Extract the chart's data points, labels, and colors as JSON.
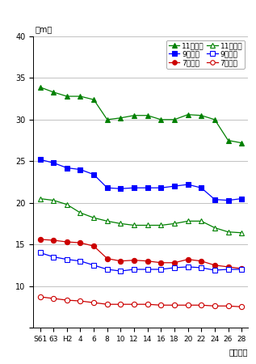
{
  "x_labels": [
    "S61",
    "63",
    "H2",
    "4",
    "6",
    "8",
    "10",
    "12",
    "14",
    "16",
    "18",
    "20",
    "22",
    "24",
    "26",
    "28"
  ],
  "x_positions": [
    0,
    1,
    2,
    3,
    4,
    5,
    6,
    7,
    8,
    9,
    10,
    11,
    12,
    13,
    14,
    15
  ],
  "series_order": [
    "11歳男子",
    "9歳男子",
    "7歳男子",
    "11歳女子",
    "9歳女子",
    "7歳女子"
  ],
  "series": {
    "11歳男子": {
      "values": [
        33.9,
        33.3,
        32.8,
        32.8,
        32.4,
        30.0,
        30.2,
        30.5,
        30.5,
        30.0,
        30.0,
        30.6,
        30.5,
        30.0,
        27.5,
        27.2
      ],
      "color": "#008000",
      "marker": "^",
      "filled": true,
      "markersize": 4.5
    },
    "9歳男子": {
      "values": [
        25.2,
        24.8,
        24.2,
        24.0,
        23.4,
        21.8,
        21.7,
        21.8,
        21.8,
        21.8,
        22.0,
        22.2,
        21.8,
        20.4,
        20.3,
        20.5
      ],
      "color": "#0000FF",
      "marker": "s",
      "filled": true,
      "markersize": 4.5
    },
    "7歳男子": {
      "values": [
        15.6,
        15.5,
        15.3,
        15.2,
        14.8,
        13.3,
        13.0,
        13.1,
        13.0,
        12.8,
        12.8,
        13.2,
        13.0,
        12.5,
        12.3,
        12.1
      ],
      "color": "#CC0000",
      "marker": "o",
      "filled": true,
      "markersize": 4.5
    },
    "11歳女子": {
      "values": [
        20.5,
        20.3,
        19.8,
        18.8,
        18.2,
        17.8,
        17.5,
        17.3,
        17.3,
        17.3,
        17.5,
        17.8,
        17.8,
        17.0,
        16.5,
        16.4
      ],
      "color": "#008000",
      "marker": "^",
      "filled": false,
      "markersize": 4.5
    },
    "9歳女子": {
      "values": [
        14.0,
        13.5,
        13.2,
        13.0,
        12.5,
        12.0,
        11.8,
        12.0,
        12.0,
        12.0,
        12.2,
        12.3,
        12.2,
        11.9,
        12.0,
        12.0
      ],
      "color": "#0000FF",
      "marker": "s",
      "filled": false,
      "markersize": 4.5
    },
    "7歳女子": {
      "values": [
        8.7,
        8.5,
        8.3,
        8.2,
        8.0,
        7.8,
        7.8,
        7.8,
        7.8,
        7.7,
        7.7,
        7.7,
        7.7,
        7.6,
        7.6,
        7.5
      ],
      "color": "#CC0000",
      "marker": "o",
      "filled": false,
      "markersize": 4.5
    }
  },
  "ylim": [
    5,
    40
  ],
  "yticks": [
    5,
    10,
    15,
    20,
    25,
    30,
    35,
    40
  ],
  "xlim": [
    -0.5,
    15.5
  ],
  "ylabel_text": "（m）",
  "xlabel_text": "（年度）",
  "grid_color": "#aaaaaa",
  "legend_order": [
    "11歳男子",
    "9歳男子",
    "7歳男子",
    "11歳女子",
    "9歳女子",
    "7歳女子"
  ],
  "tick_fontsize": 7,
  "label_fontsize": 7,
  "legend_fontsize": 6.5
}
